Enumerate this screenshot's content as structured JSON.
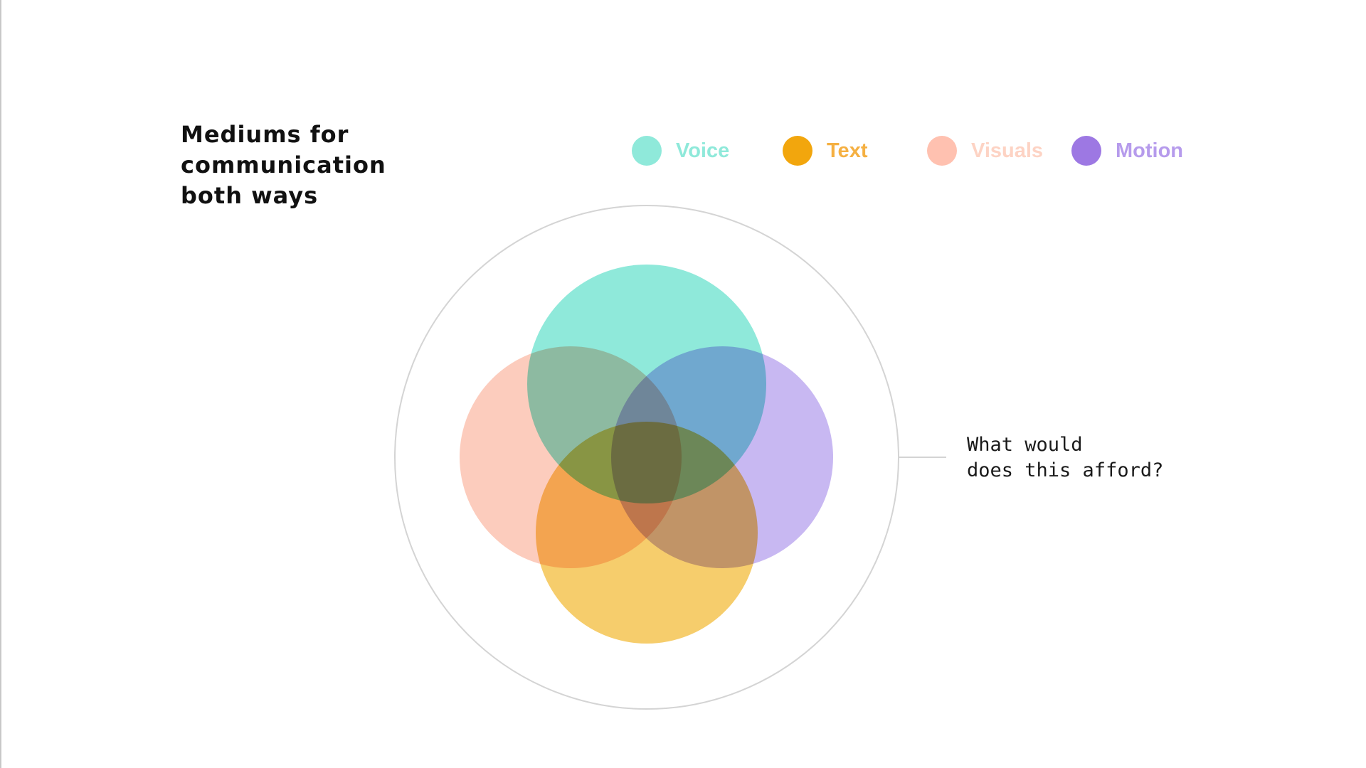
{
  "title": {
    "lines": [
      "Mediums for",
      "communication",
      "both ways"
    ]
  },
  "legend": [
    {
      "label": "Voice",
      "color": "#8fe9da",
      "text_color": "#8fe9da"
    },
    {
      "label": "Text",
      "color": "#f2a60d",
      "text_color": "#f5b042"
    },
    {
      "label": "Visuals",
      "color": "#ffc1b0",
      "text_color": "#fdd3c4"
    },
    {
      "label": "Motion",
      "color": "#9d78e3",
      "text_color": "#b69bec"
    }
  ],
  "diagram": {
    "circle_colors": {
      "voice": "#8fe9da",
      "motion": "#c8b8f2",
      "visuals": "#fcccbd",
      "text": "#f6cd6c"
    },
    "outer_ring_color": "#d4d4d4"
  },
  "annotation": {
    "lines": [
      "What would",
      "does this afford?"
    ]
  }
}
